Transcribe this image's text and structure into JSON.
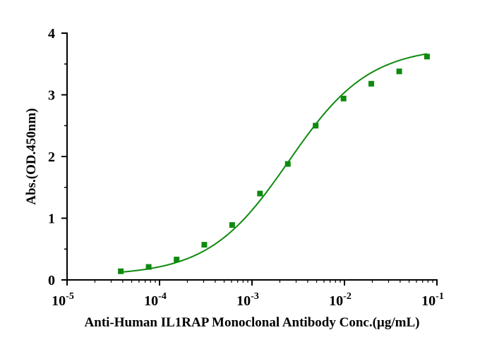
{
  "chart_data": {
    "type": "scatter",
    "title": "",
    "xlabel": "Anti-Human IL1RAP Monoclonal Antibody Conc.(µg/mL)",
    "ylabel": "Abs.(OD.450nm)",
    "x_scale": "log",
    "xlim": [
      1e-05,
      0.1
    ],
    "ylim": [
      0,
      4
    ],
    "x_ticks": [
      {
        "base": "10",
        "exp": "-5",
        "value": 1e-05
      },
      {
        "base": "10",
        "exp": "-4",
        "value": 0.0001
      },
      {
        "base": "10",
        "exp": "-3",
        "value": 0.001
      },
      {
        "base": "10",
        "exp": "-2",
        "value": 0.01
      },
      {
        "base": "10",
        "exp": "-1",
        "value": 0.1
      }
    ],
    "y_ticks": [
      "0",
      "1",
      "2",
      "3",
      "4"
    ],
    "grid": false,
    "legend": "none",
    "series": [
      {
        "marker": "square",
        "color": "#0f8a0f",
        "fit": "sigmoidal curve",
        "x": [
          3.81e-05,
          7.63e-05,
          0.000153,
          0.000305,
          0.00061,
          0.00122,
          0.00244,
          0.00488,
          0.00977,
          0.0195,
          0.0391,
          0.0781
        ],
        "y": [
          0.14,
          0.21,
          0.33,
          0.57,
          0.89,
          1.4,
          1.88,
          2.5,
          2.94,
          3.18,
          3.38,
          3.62
        ]
      }
    ]
  }
}
